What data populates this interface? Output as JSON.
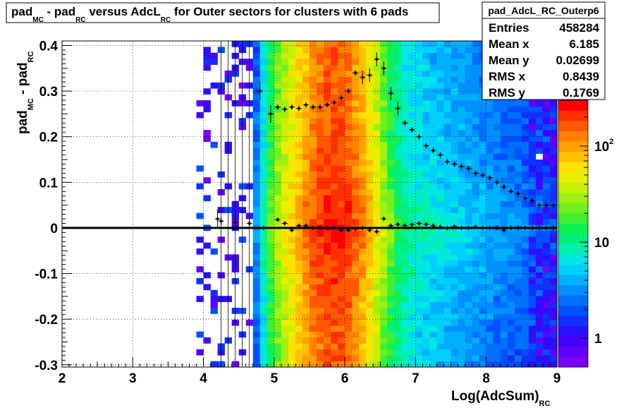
{
  "chart_data": {
    "type": "heatmap",
    "title": {
      "a": "pad",
      "a_sub": "MC",
      "b": " - pad",
      "b_sub": "RC",
      "c": " versus AdcL",
      "c_sub": "RC",
      "d": " for Outer sectors for clusters with 6 pads"
    },
    "xlabel": {
      "main": "Log(AdcSum)",
      "sub": "RC"
    },
    "ylabel": {
      "a": "pad",
      "a_sub": "MC",
      "b": " - pad",
      "b_sub": "RC"
    },
    "xlim": [
      2,
      9
    ],
    "ylim": [
      -0.305,
      0.41
    ],
    "x_ticks": [
      "2",
      "3",
      "4",
      "5",
      "6",
      "7",
      "8",
      "9"
    ],
    "y_ticks": [
      "-0.3",
      "-0.2",
      "-0.1",
      "0",
      "0.1",
      "0.2",
      "0.3",
      "0.4"
    ],
    "colorbar": {
      "scale": "log",
      "min": 0.5,
      "max": 300,
      "labels": [
        {
          "text": "1",
          "value": 1
        },
        {
          "text": "10",
          "value": 10
        },
        {
          "text": "10",
          "sup": "2",
          "value": 100
        }
      ]
    },
    "stats": {
      "name": "pad_AdcL_RC_Outerp6",
      "rows": [
        {
          "label": "Entries",
          "value": "458284"
        },
        {
          "label": "Mean x",
          "value": "6.185"
        },
        {
          "label": "Mean y",
          "value": "0.02699"
        },
        {
          "label": "RMS x",
          "value": "0.8439"
        },
        {
          "label": "RMS y",
          "value": "0.1769"
        }
      ]
    },
    "profile_upper": [
      [
        4.2,
        0.02
      ],
      [
        4.8,
        0.3
      ],
      [
        4.95,
        0.25
      ],
      [
        5.05,
        0.265
      ],
      [
        5.15,
        0.26
      ],
      [
        5.25,
        0.265
      ],
      [
        5.35,
        0.262
      ],
      [
        5.45,
        0.27
      ],
      [
        5.55,
        0.265
      ],
      [
        5.65,
        0.265
      ],
      [
        5.75,
        0.27
      ],
      [
        5.85,
        0.275
      ],
      [
        5.95,
        0.285
      ],
      [
        6.05,
        0.3
      ],
      [
        6.15,
        0.34
      ],
      [
        6.25,
        0.33
      ],
      [
        6.35,
        0.335
      ],
      [
        6.45,
        0.37
      ],
      [
        6.55,
        0.35
      ],
      [
        6.65,
        0.295
      ],
      [
        6.75,
        0.262
      ],
      [
        6.85,
        0.23
      ],
      [
        6.95,
        0.215
      ],
      [
        7.05,
        0.2
      ],
      [
        7.15,
        0.18
      ],
      [
        7.25,
        0.17
      ],
      [
        7.35,
        0.16
      ],
      [
        7.45,
        0.145
      ],
      [
        7.55,
        0.14
      ],
      [
        7.65,
        0.135
      ],
      [
        7.75,
        0.13
      ],
      [
        7.85,
        0.12
      ],
      [
        7.95,
        0.115
      ],
      [
        8.05,
        0.11
      ],
      [
        8.15,
        0.1
      ],
      [
        8.25,
        0.09
      ],
      [
        8.35,
        0.08
      ],
      [
        8.45,
        0.075
      ],
      [
        8.55,
        0.065
      ],
      [
        8.65,
        0.06
      ],
      [
        8.75,
        0.05
      ],
      [
        8.85,
        0.05
      ],
      [
        8.95,
        0.05
      ]
    ],
    "profile_lower": [
      [
        4.25,
        0.015
      ],
      [
        4.45,
        0.012
      ],
      [
        4.65,
        0.01
      ],
      [
        4.85,
        0.0
      ],
      [
        5.05,
        0.018
      ],
      [
        5.15,
        0.01
      ],
      [
        5.25,
        -0.005
      ],
      [
        5.35,
        0.005
      ],
      [
        5.45,
        0.005
      ],
      [
        5.55,
        0.0
      ],
      [
        5.65,
        0.0
      ],
      [
        5.75,
        0.0
      ],
      [
        5.85,
        0.0
      ],
      [
        5.95,
        -0.005
      ],
      [
        6.05,
        -0.005
      ],
      [
        6.15,
        -0.002
      ],
      [
        6.25,
        0.0
      ],
      [
        6.35,
        -0.005
      ],
      [
        6.45,
        -0.008
      ],
      [
        6.55,
        0.02
      ],
      [
        6.65,
        0.005
      ],
      [
        6.75,
        0.008
      ],
      [
        6.85,
        0.005
      ],
      [
        6.95,
        0.008
      ],
      [
        7.05,
        0.01
      ],
      [
        7.15,
        0.008
      ],
      [
        7.25,
        0.005
      ],
      [
        7.35,
        0.002
      ],
      [
        7.45,
        0.0
      ],
      [
        7.55,
        0.003
      ],
      [
        7.65,
        0.0
      ],
      [
        7.75,
        0.0
      ],
      [
        7.85,
        0.002
      ],
      [
        7.95,
        0.0
      ],
      [
        8.05,
        0.0
      ],
      [
        8.15,
        0.0
      ],
      [
        8.25,
        -0.005
      ],
      [
        8.35,
        0.0
      ],
      [
        8.45,
        0.0
      ],
      [
        8.55,
        0.0
      ],
      [
        8.65,
        0.0
      ],
      [
        8.75,
        0.0
      ],
      [
        8.85,
        0.0
      ],
      [
        8.95,
        0.0
      ]
    ]
  }
}
